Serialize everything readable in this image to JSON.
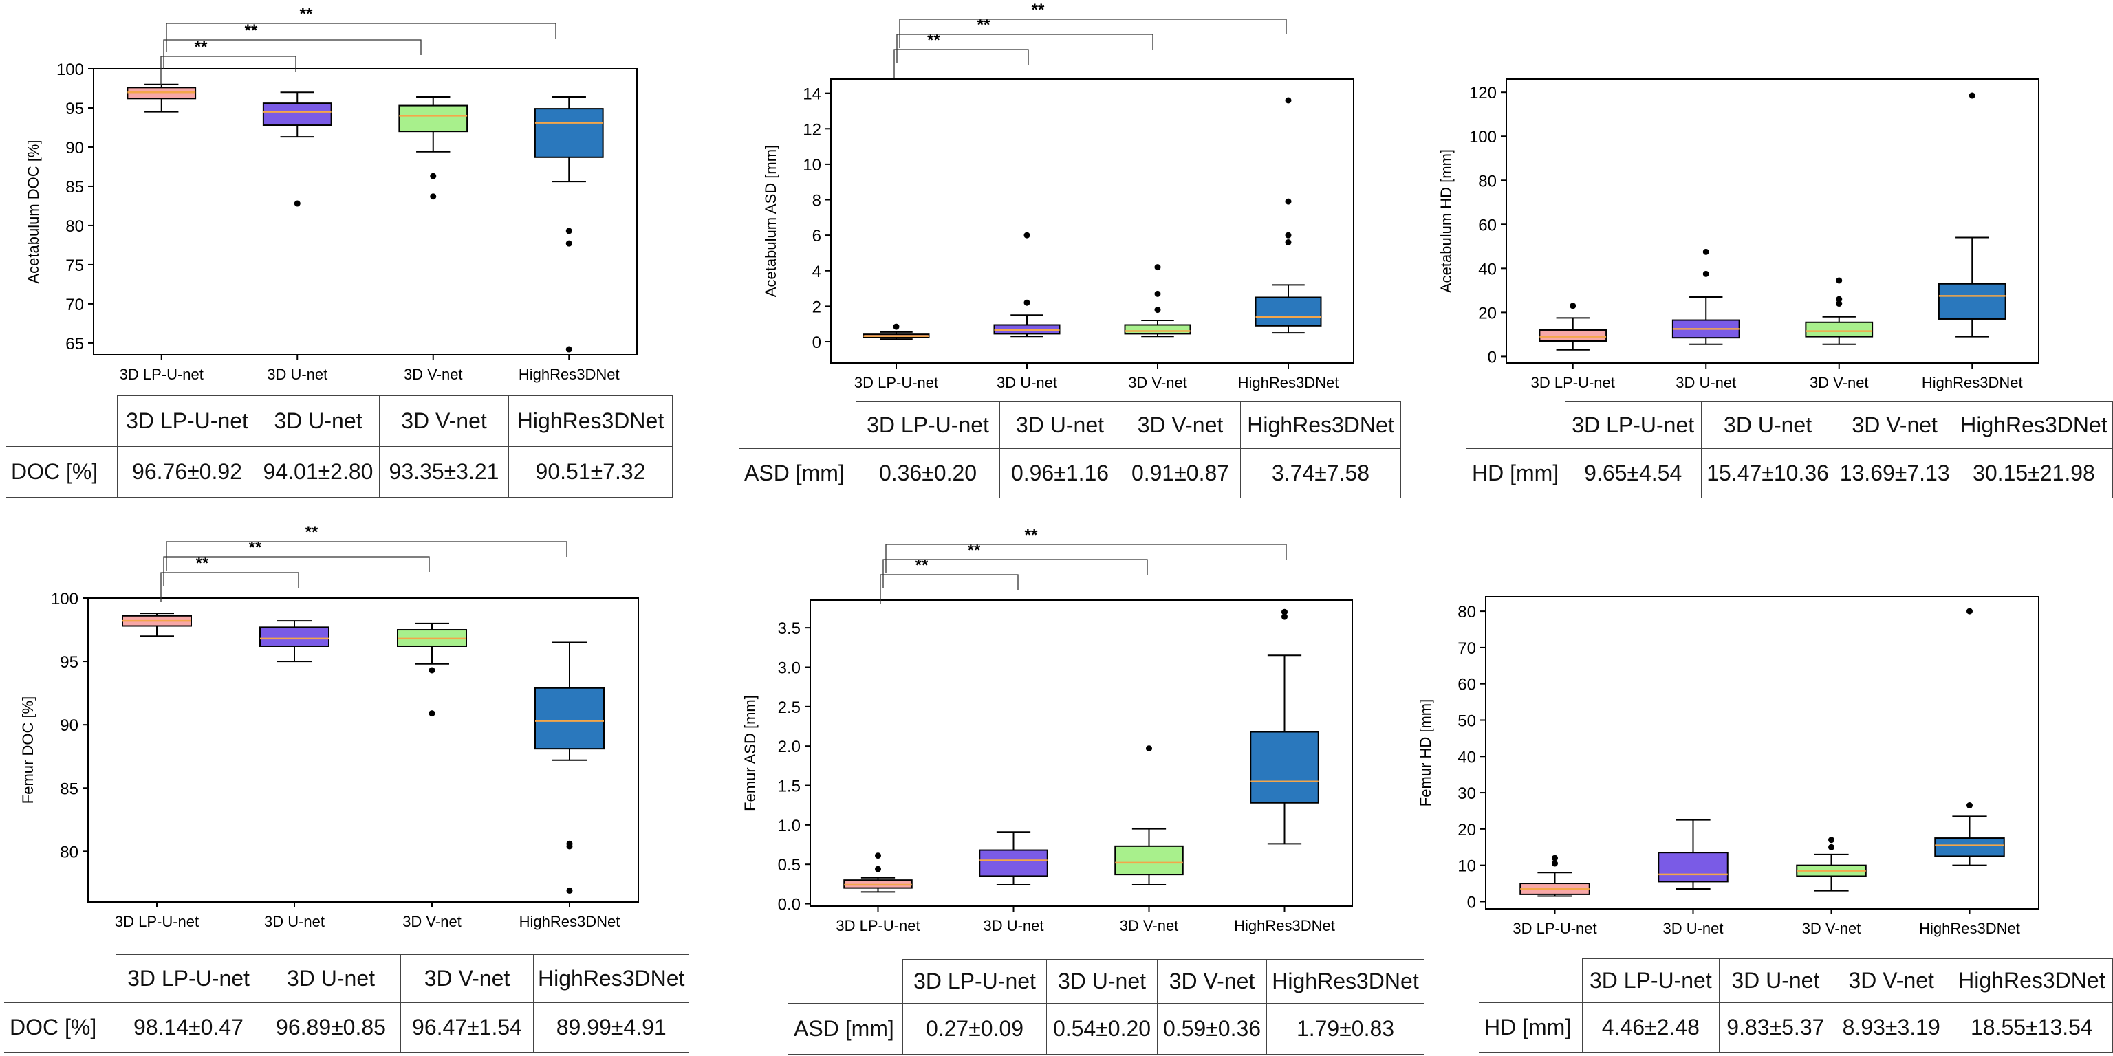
{
  "colors": {
    "3D LP-U-net": "#f7a7a7",
    "3D U-net": "#7a5be6",
    "3D V-net": "#a8f08c",
    "HighRes3DNet": "#2a78bd",
    "median_line": "#f4a64a",
    "axes": "#000000"
  },
  "chart_data": [
    {
      "type": "box",
      "ylabel": "Acetabulum DOC [%]",
      "ylim": [
        63.5,
        100
      ],
      "yticks": [
        65,
        70,
        75,
        80,
        85,
        90,
        95,
        100
      ],
      "categories": [
        "3D LP-U-net",
        "3D U-net",
        "3D V-net",
        "HighRes3DNet"
      ],
      "boxes": [
        {
          "whislo": 94.5,
          "q1": 96.2,
          "med": 97.0,
          "q3": 97.6,
          "whishi": 98.0,
          "fliers": []
        },
        {
          "whislo": 91.3,
          "q1": 92.8,
          "med": 94.5,
          "q3": 95.6,
          "whishi": 97.0,
          "fliers": [
            82.8
          ]
        },
        {
          "whislo": 89.4,
          "q1": 92.0,
          "med": 94.0,
          "q3": 95.3,
          "whishi": 96.4,
          "fliers": [
            86.3,
            83.7
          ]
        },
        {
          "whislo": 85.6,
          "q1": 88.7,
          "med": 93.1,
          "q3": 94.9,
          "whishi": 96.4,
          "fliers": [
            79.3,
            77.7,
            64.2
          ]
        }
      ],
      "significance": [
        "**",
        "**",
        "**"
      ],
      "table": {
        "metric": "DOC [%]",
        "values": [
          "96.76±0.92",
          "94.01±2.80",
          "93.35±3.21",
          "90.51±7.32"
        ]
      }
    },
    {
      "type": "box",
      "ylabel": "Acetabulum ASD [mm]",
      "ylim": [
        -1.2,
        14.8
      ],
      "yticks": [
        0,
        2,
        4,
        6,
        8,
        10,
        12,
        14
      ],
      "categories": [
        "3D LP-U-net",
        "3D U-net",
        "3D V-net",
        "HighRes3DNet"
      ],
      "boxes": [
        {
          "whislo": 0.15,
          "q1": 0.25,
          "med": 0.32,
          "q3": 0.42,
          "whishi": 0.55,
          "fliers": [
            0.85
          ]
        },
        {
          "whislo": 0.3,
          "q1": 0.45,
          "med": 0.65,
          "q3": 0.95,
          "whishi": 1.5,
          "fliers": [
            2.2,
            6.0
          ]
        },
        {
          "whislo": 0.3,
          "q1": 0.45,
          "med": 0.6,
          "q3": 0.95,
          "whishi": 1.2,
          "fliers": [
            1.8,
            2.7,
            4.2
          ]
        },
        {
          "whislo": 0.5,
          "q1": 0.9,
          "med": 1.4,
          "q3": 2.5,
          "whishi": 3.2,
          "fliers": [
            5.6,
            6.0,
            7.9,
            13.6
          ]
        }
      ],
      "significance": [
        "**",
        "**",
        "**"
      ],
      "table": {
        "metric": "ASD [mm]",
        "values": [
          "0.36±0.20",
          "0.96±1.16",
          "0.91±0.87",
          "3.74±7.58"
        ]
      }
    },
    {
      "type": "box",
      "ylabel": "Acetabulum HD [mm]",
      "ylim": [
        -3,
        126
      ],
      "yticks": [
        0,
        20,
        40,
        60,
        80,
        100,
        120
      ],
      "categories": [
        "3D LP-U-net",
        "3D U-net",
        "3D V-net",
        "HighRes3DNet"
      ],
      "boxes": [
        {
          "whislo": 3,
          "q1": 7,
          "med": 9,
          "q3": 12,
          "whishi": 17.5,
          "fliers": [
            23
          ]
        },
        {
          "whislo": 5.5,
          "q1": 8.5,
          "med": 12.5,
          "q3": 16.5,
          "whishi": 27,
          "fliers": [
            37.5,
            47.5
          ]
        },
        {
          "whislo": 5.5,
          "q1": 9,
          "med": 11.5,
          "q3": 15.5,
          "whishi": 18,
          "fliers": [
            24,
            26,
            34.5
          ]
        },
        {
          "whislo": 9,
          "q1": 17,
          "med": 27.5,
          "q3": 33,
          "whishi": 54,
          "fliers": [
            118.5
          ]
        }
      ],
      "table": {
        "metric": "HD [mm]",
        "values": [
          "9.65±4.54",
          "15.47±10.36",
          "13.69±7.13",
          "30.15±21.98"
        ]
      }
    },
    {
      "type": "box",
      "ylabel": "Femur DOC [%]",
      "ylim": [
        76,
        100
      ],
      "yticks": [
        80,
        85,
        90,
        95,
        100
      ],
      "categories": [
        "3D LP-U-net",
        "3D U-net",
        "3D V-net",
        "HighRes3DNet"
      ],
      "boxes": [
        {
          "whislo": 97.0,
          "q1": 97.8,
          "med": 98.2,
          "q3": 98.6,
          "whishi": 98.8,
          "fliers": []
        },
        {
          "whislo": 95.0,
          "q1": 96.2,
          "med": 96.8,
          "q3": 97.7,
          "whishi": 98.2,
          "fliers": []
        },
        {
          "whislo": 94.8,
          "q1": 96.2,
          "med": 96.8,
          "q3": 97.5,
          "whishi": 98.0,
          "fliers": [
            94.3,
            90.9
          ]
        },
        {
          "whislo": 87.2,
          "q1": 88.1,
          "med": 90.3,
          "q3": 92.9,
          "whishi": 96.5,
          "fliers": [
            80.6,
            80.4,
            76.9
          ]
        }
      ],
      "significance": [
        "**",
        "**",
        "**"
      ],
      "table": {
        "metric": "DOC [%]",
        "values": [
          "98.14±0.47",
          "96.89±0.85",
          "96.47±1.54",
          "89.99±4.91"
        ]
      }
    },
    {
      "type": "box",
      "ylabel": "Femur ASD [mm]",
      "ylim": [
        -0.03,
        3.85
      ],
      "yticks": [
        0.0,
        0.5,
        1.0,
        1.5,
        2.0,
        2.5,
        3.0,
        3.5
      ],
      "categories": [
        "3D LP-U-net",
        "3D U-net",
        "3D V-net",
        "HighRes3DNet"
      ],
      "boxes": [
        {
          "whislo": 0.15,
          "q1": 0.2,
          "med": 0.24,
          "q3": 0.3,
          "whishi": 0.33,
          "fliers": [
            0.44,
            0.61
          ]
        },
        {
          "whislo": 0.24,
          "q1": 0.35,
          "med": 0.55,
          "q3": 0.68,
          "whishi": 0.91,
          "fliers": []
        },
        {
          "whislo": 0.24,
          "q1": 0.37,
          "med": 0.52,
          "q3": 0.73,
          "whishi": 0.95,
          "fliers": [
            1.97
          ]
        },
        {
          "whislo": 0.76,
          "q1": 1.28,
          "med": 1.55,
          "q3": 2.18,
          "whishi": 3.15,
          "fliers": [
            3.64,
            3.7
          ]
        }
      ],
      "significance": [
        "**",
        "**",
        "**"
      ],
      "table": {
        "metric": "ASD [mm]",
        "values": [
          "0.27±0.09",
          "0.54±0.20",
          "0.59±0.36",
          "1.79±0.83"
        ]
      }
    },
    {
      "type": "box",
      "ylabel": "Femur HD [mm]",
      "ylim": [
        -2,
        84
      ],
      "yticks": [
        0,
        10,
        20,
        30,
        40,
        50,
        60,
        70,
        80
      ],
      "categories": [
        "3D LP-U-net",
        "3D U-net",
        "3D V-net",
        "HighRes3DNet"
      ],
      "boxes": [
        {
          "whislo": 1.5,
          "q1": 2,
          "med": 3.5,
          "q3": 5,
          "whishi": 8,
          "fliers": [
            10.5,
            12
          ]
        },
        {
          "whislo": 3.5,
          "q1": 5.5,
          "med": 7.5,
          "q3": 13.5,
          "whishi": 22.5,
          "fliers": []
        },
        {
          "whislo": 3,
          "q1": 7,
          "med": 8.5,
          "q3": 10,
          "whishi": 13,
          "fliers": [
            15,
            17
          ]
        },
        {
          "whislo": 10,
          "q1": 12.5,
          "med": 15.5,
          "q3": 17.5,
          "whishi": 23.5,
          "fliers": [
            26.5,
            80
          ]
        }
      ],
      "table": {
        "metric": "HD [mm]",
        "values": [
          "4.46±2.48",
          "9.83±5.37",
          "8.93±3.19",
          "18.55±13.54"
        ]
      }
    }
  ]
}
